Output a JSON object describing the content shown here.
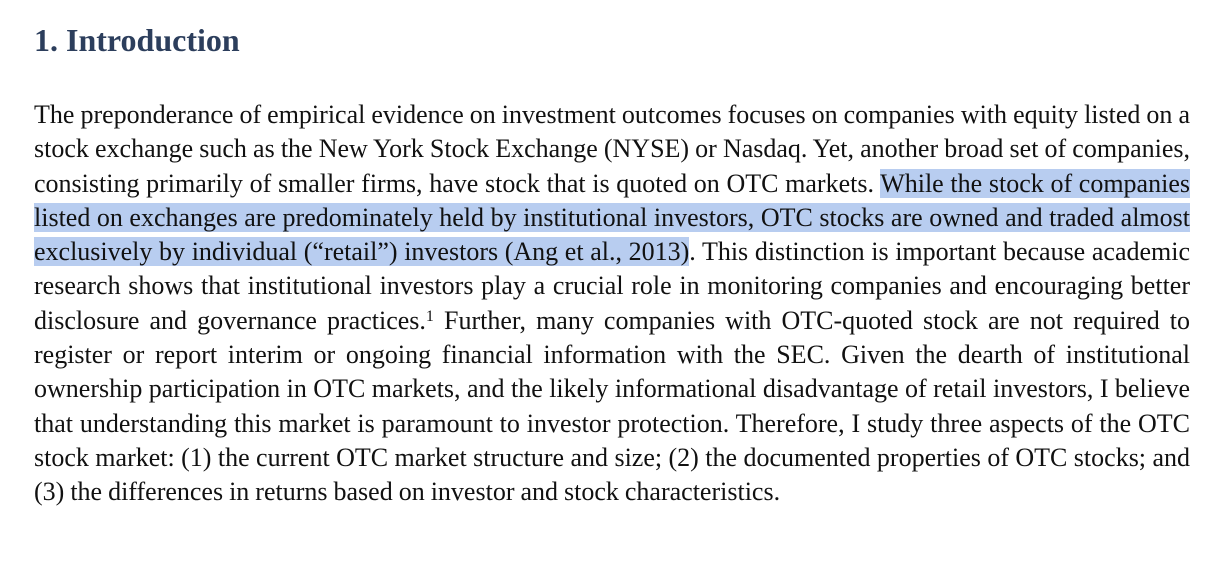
{
  "heading": "1. Introduction",
  "paragraph": {
    "part1": "The preponderance of empirical evidence on investment outcomes focuses on companies with equity listed on a stock exchange such as the New York Stock Exchange (NYSE) or Nasdaq. Yet, another broad set of companies, consisting primarily of smaller firms, have stock that is quoted on OTC markets. ",
    "highlighted": "While the stock of companies listed on exchanges are predominately held by institutional investors, OTC stocks are owned and traded almost exclusively by individual (“retail”) investors (Ang et al., 2013)",
    "part2": ". This distinction is important because academic research shows that institutional investors play a crucial role in monitoring companies and encouraging better disclosure and governance practices.",
    "footnote_marker": "1",
    "part3": " Further, many companies with OTC-quoted stock are not required to register or report interim or ongoing financial information with the SEC. Given the dearth of institutional ownership participation in OTC markets, and the likely informational disadvantage of retail investors, I believe that understanding this market is paramount to investor protection. Therefore, I study three aspects of the OTC stock market: (1) the current OTC market structure and size; (2) the documented properties of OTC stocks; and (3) the differences in returns based on investor and stock characteristics."
  },
  "colors": {
    "heading": "#2c3e5c",
    "highlight": "#b8cdf0",
    "text": "#111111"
  }
}
